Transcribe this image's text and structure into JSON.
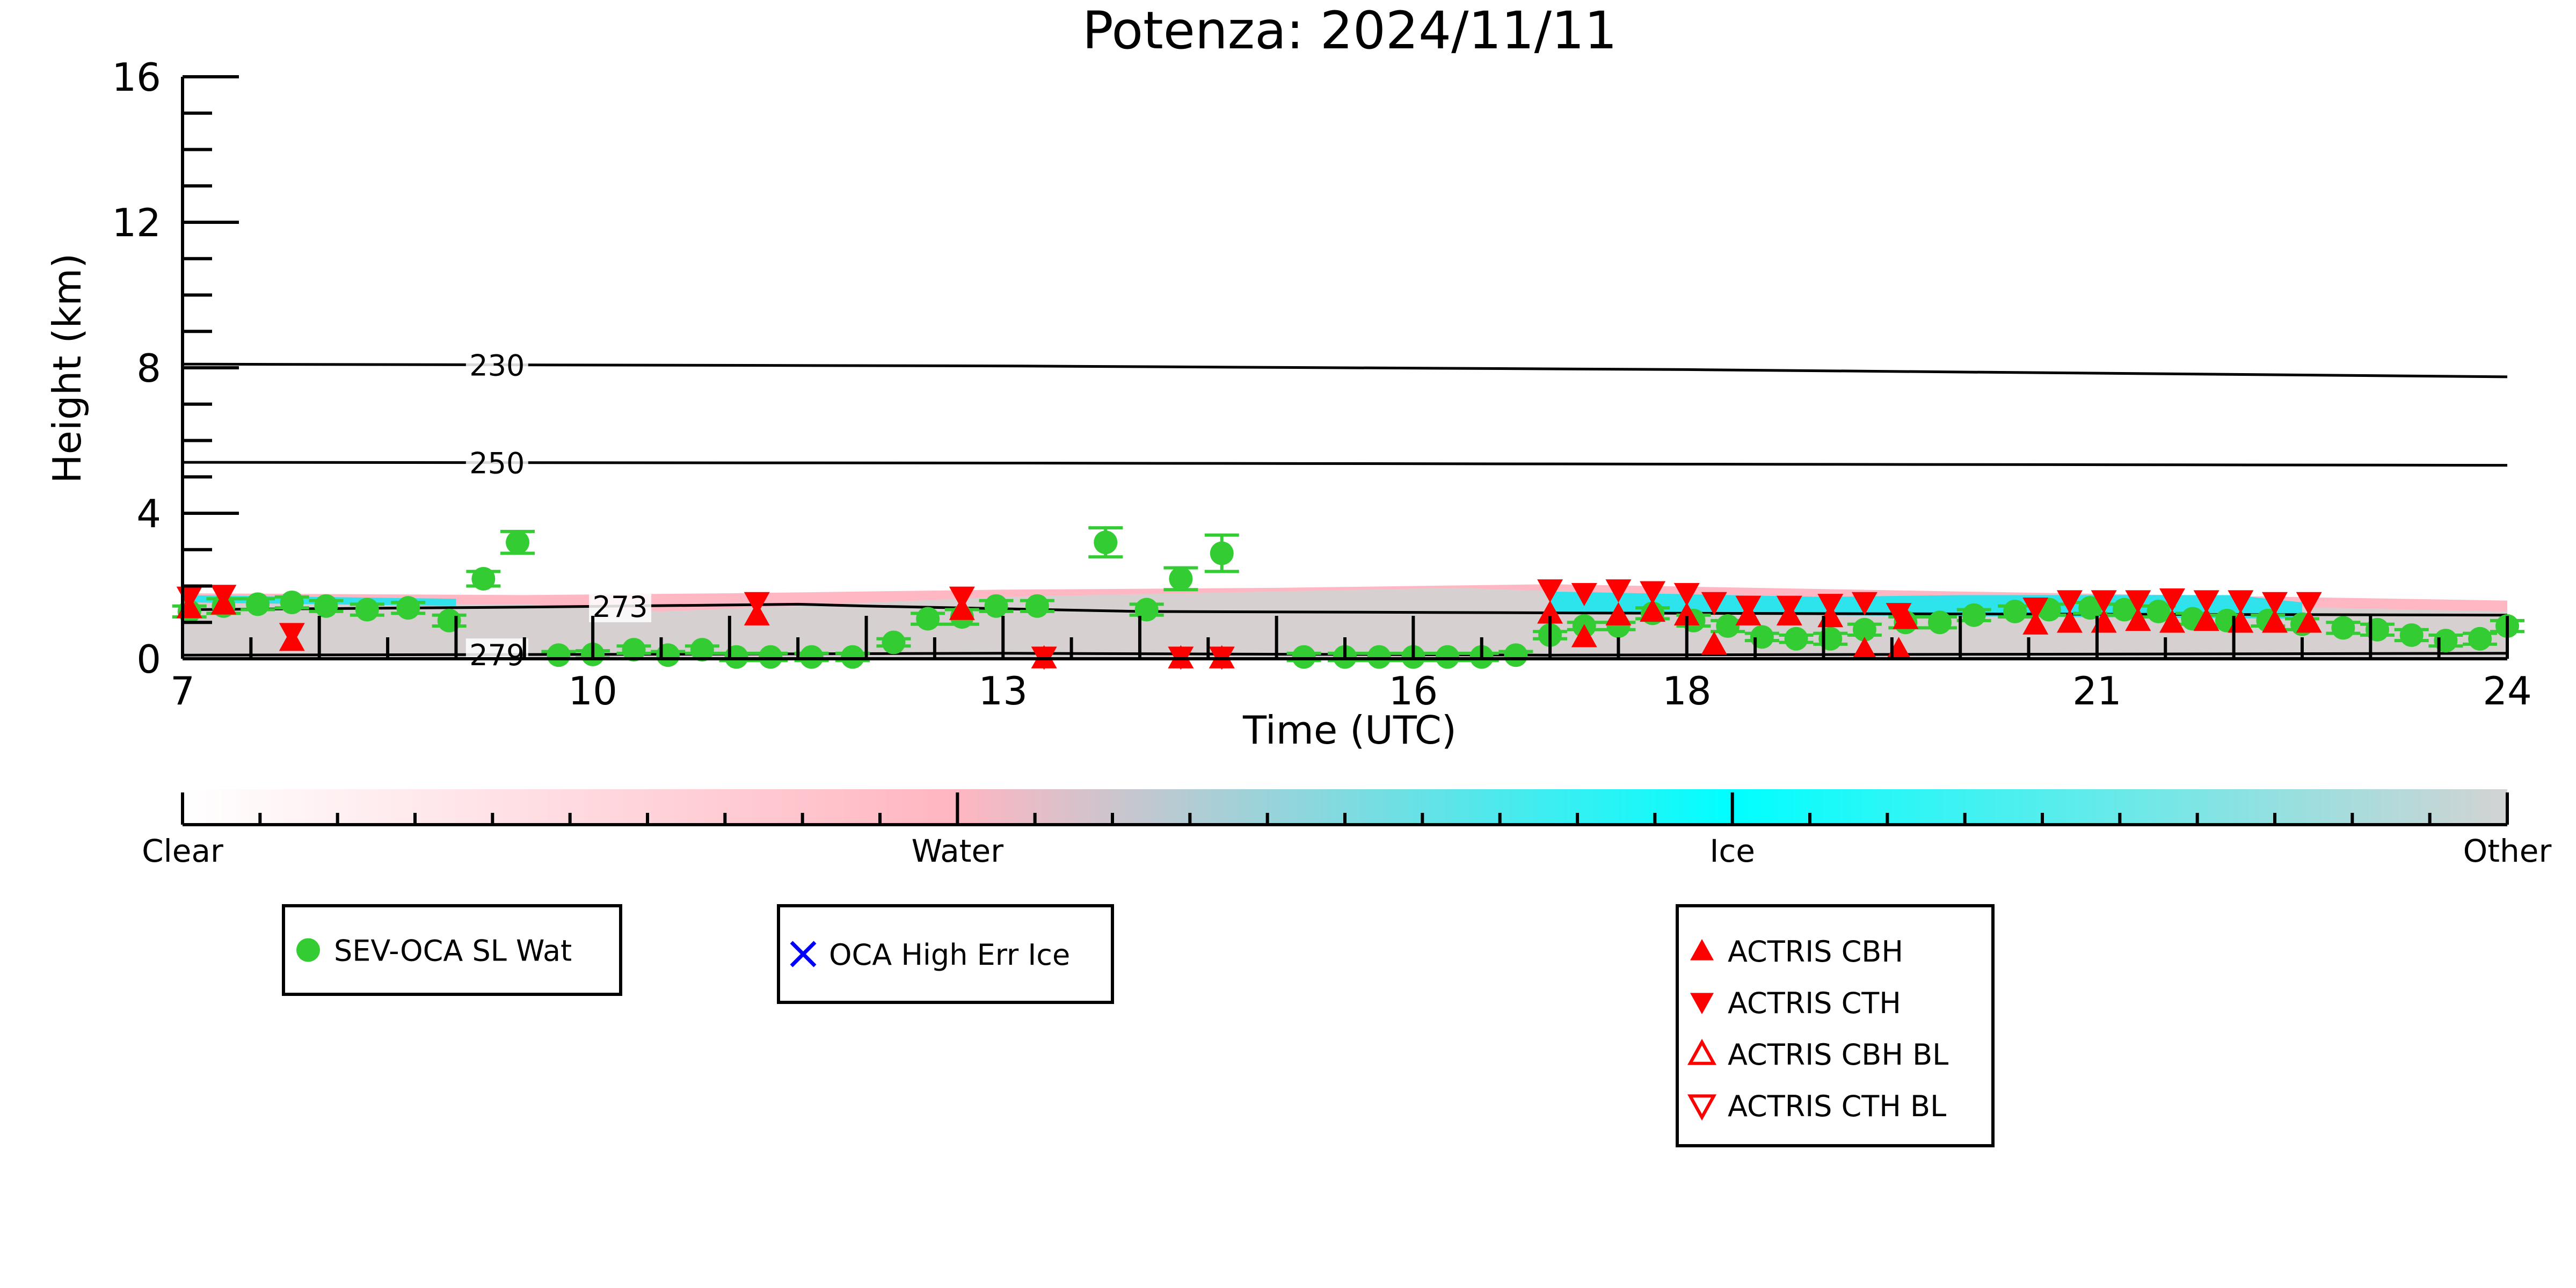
{
  "chart_data": {
    "type": "scatter",
    "title": "Potenza: 2024/11/11",
    "xlabel": "Time (UTC)",
    "ylabel": "Height (km)",
    "xlim": [
      7,
      24
    ],
    "ylim": [
      0,
      16
    ],
    "xticks": [
      7,
      10,
      13,
      16,
      18,
      21,
      24
    ],
    "xtick_labels": [
      "7",
      "10",
      "13",
      "16",
      "18",
      "21",
      "24"
    ],
    "yticks": [
      0,
      4,
      8,
      12,
      16
    ],
    "ytick_labels": [
      "0",
      "4",
      "8",
      "12",
      "16"
    ],
    "isotherms": [
      {
        "label": "230",
        "label_x": 9.3,
        "points": [
          [
            7,
            8.1
          ],
          [
            13,
            8.05
          ],
          [
            18,
            7.95
          ],
          [
            24,
            7.75
          ]
        ]
      },
      {
        "label": "250",
        "label_x": 9.3,
        "points": [
          [
            7,
            5.4
          ],
          [
            13,
            5.38
          ],
          [
            18,
            5.35
          ],
          [
            24,
            5.32
          ]
        ]
      },
      {
        "label": "273",
        "label_x": 10.2,
        "points": [
          [
            7,
            1.35
          ],
          [
            9.5,
            1.42
          ],
          [
            11.5,
            1.5
          ],
          [
            12,
            1.45
          ],
          [
            14,
            1.3
          ],
          [
            18,
            1.25
          ],
          [
            24,
            1.2
          ]
        ]
      },
      {
        "label": "279",
        "label_x": 9.3,
        "points": [
          [
            7,
            0.1
          ],
          [
            10,
            0.12
          ],
          [
            13,
            0.15
          ],
          [
            17,
            0.1
          ],
          [
            24,
            0.15
          ]
        ]
      }
    ],
    "cloud_mask_regions": [
      {
        "class": "Water",
        "color": "#ffb0bd",
        "points": [
          [
            7,
            1.8
          ],
          [
            9.5,
            1.75
          ],
          [
            11,
            1.8
          ],
          [
            13,
            1.9
          ],
          [
            15,
            1.95
          ],
          [
            17,
            2.05
          ],
          [
            20,
            1.85
          ],
          [
            24,
            1.6
          ],
          [
            24,
            0
          ],
          [
            7,
            0
          ]
        ]
      },
      {
        "class": "Other",
        "color": "#d3d3d3",
        "points": [
          [
            7,
            1.5
          ],
          [
            9.5,
            1.5
          ],
          [
            10.5,
            1.3
          ],
          [
            13,
            1.7
          ],
          [
            16.3,
            1.95
          ],
          [
            17.5,
            1.8
          ],
          [
            20,
            1.6
          ],
          [
            24,
            1.3
          ],
          [
            24,
            0
          ],
          [
            7,
            0
          ]
        ]
      },
      {
        "class": "Ice",
        "color": "#1be5f0",
        "points": [
          [
            17,
            1.85
          ],
          [
            19,
            1.7
          ],
          [
            20,
            1.75
          ],
          [
            22,
            1.75
          ],
          [
            22.5,
            1.55
          ],
          [
            22.5,
            1.1
          ],
          [
            17,
            1.25
          ]
        ]
      },
      {
        "class": "Ice",
        "color": "#1be5f0",
        "points": [
          [
            7,
            1.75
          ],
          [
            9,
            1.65
          ],
          [
            9,
            1.45
          ],
          [
            7,
            1.55
          ]
        ]
      }
    ],
    "series": [
      {
        "name": "SEV-OCA SL Wat",
        "marker": "circle",
        "color": "#33cc33",
        "points": [
          [
            7.05,
            1.3,
            0.15
          ],
          [
            7.3,
            1.45,
            0.2
          ],
          [
            7.55,
            1.5,
            0.15
          ],
          [
            7.8,
            1.55,
            0.15
          ],
          [
            8.05,
            1.45,
            0.15
          ],
          [
            8.35,
            1.35,
            0.15
          ],
          [
            8.65,
            1.4,
            0.15
          ],
          [
            8.95,
            1.05,
            0.15
          ],
          [
            9.2,
            2.2,
            0.2
          ],
          [
            9.45,
            3.2,
            0.3
          ],
          [
            9.75,
            0.1,
            0.1
          ],
          [
            10.0,
            0.12,
            0.1
          ],
          [
            10.3,
            0.25,
            0.1
          ],
          [
            10.55,
            0.1,
            0.1
          ],
          [
            10.8,
            0.25,
            0.1
          ],
          [
            11.05,
            0.05,
            0.1
          ],
          [
            11.3,
            0.05,
            0.1
          ],
          [
            11.6,
            0.05,
            0.1
          ],
          [
            11.9,
            0.05,
            0.1
          ],
          [
            12.2,
            0.45,
            0.1
          ],
          [
            12.45,
            1.1,
            0.15
          ],
          [
            12.7,
            1.15,
            0.2
          ],
          [
            12.95,
            1.45,
            0.15
          ],
          [
            13.25,
            1.45,
            0.15
          ],
          [
            13.75,
            3.2,
            0.4
          ],
          [
            14.05,
            1.35,
            0.15
          ],
          [
            14.3,
            2.2,
            0.3
          ],
          [
            14.6,
            2.9,
            0.5
          ],
          [
            15.2,
            0.05,
            0.1
          ],
          [
            15.5,
            0.05,
            0.1
          ],
          [
            15.75,
            0.05,
            0.1
          ],
          [
            16.0,
            0.05,
            0.1
          ],
          [
            16.25,
            0.05,
            0.1
          ],
          [
            16.5,
            0.05,
            0.1
          ],
          [
            16.75,
            0.1,
            0.1
          ],
          [
            17.0,
            0.65,
            0.1
          ],
          [
            17.25,
            0.9,
            0.1
          ],
          [
            17.5,
            0.9,
            0.1
          ],
          [
            17.75,
            1.25,
            0.15
          ],
          [
            18.05,
            1.05,
            0.15
          ],
          [
            18.3,
            0.9,
            0.15
          ],
          [
            18.55,
            0.6,
            0.1
          ],
          [
            18.8,
            0.55,
            0.1
          ],
          [
            19.05,
            0.55,
            0.15
          ],
          [
            19.3,
            0.8,
            0.15
          ],
          [
            19.6,
            1.0,
            0.15
          ],
          [
            19.85,
            1.0,
            0.15
          ],
          [
            20.1,
            1.2,
            0.15
          ],
          [
            20.4,
            1.3,
            0.15
          ],
          [
            20.65,
            1.35,
            0.15
          ],
          [
            20.95,
            1.4,
            0.15
          ],
          [
            21.2,
            1.35,
            0.15
          ],
          [
            21.45,
            1.3,
            0.15
          ],
          [
            21.7,
            1.1,
            0.15
          ],
          [
            21.95,
            1.05,
            0.15
          ],
          [
            22.25,
            1.05,
            0.15
          ],
          [
            22.5,
            0.95,
            0.15
          ],
          [
            22.8,
            0.85,
            0.15
          ],
          [
            23.05,
            0.8,
            0.15
          ],
          [
            23.3,
            0.65,
            0.15
          ],
          [
            23.55,
            0.5,
            0.15
          ],
          [
            23.8,
            0.55,
            0.15
          ],
          [
            24.0,
            0.9,
            0.15
          ]
        ]
      },
      {
        "name": "ACTRIS CBH",
        "marker": "triangle-up",
        "color": "#ff0000",
        "points": [
          [
            7.05,
            1.4
          ],
          [
            7.3,
            1.5
          ],
          [
            7.8,
            0.5
          ],
          [
            11.2,
            1.2
          ],
          [
            12.7,
            1.35
          ],
          [
            13.3,
            0.02
          ],
          [
            14.3,
            0.02
          ],
          [
            14.6,
            0.02
          ],
          [
            17.0,
            1.25
          ],
          [
            17.25,
            0.6
          ],
          [
            17.5,
            1.2
          ],
          [
            17.75,
            1.3
          ],
          [
            18.0,
            1.2
          ],
          [
            18.2,
            0.4
          ],
          [
            18.45,
            1.2
          ],
          [
            18.75,
            1.2
          ],
          [
            19.05,
            1.15
          ],
          [
            19.3,
            0.25
          ],
          [
            19.55,
            0.25
          ],
          [
            19.6,
            1.1
          ],
          [
            20.55,
            0.95
          ],
          [
            20.8,
            1.0
          ],
          [
            21.05,
            1.0
          ],
          [
            21.3,
            1.05
          ],
          [
            21.55,
            1.0
          ],
          [
            21.8,
            1.05
          ],
          [
            22.05,
            1.0
          ],
          [
            22.3,
            1.0
          ],
          [
            22.55,
            1.0
          ]
        ]
      },
      {
        "name": "ACTRIS CTH",
        "marker": "triangle-down",
        "color": "#ff0000",
        "points": [
          [
            7.05,
            1.7
          ],
          [
            7.3,
            1.75
          ],
          [
            7.8,
            0.7
          ],
          [
            11.2,
            1.55
          ],
          [
            12.7,
            1.7
          ],
          [
            13.3,
            0.05
          ],
          [
            14.3,
            0.05
          ],
          [
            14.6,
            0.05
          ],
          [
            17.0,
            1.9
          ],
          [
            17.25,
            1.8
          ],
          [
            17.5,
            1.9
          ],
          [
            17.75,
            1.85
          ],
          [
            18.0,
            1.8
          ],
          [
            18.2,
            1.55
          ],
          [
            18.45,
            1.45
          ],
          [
            18.75,
            1.45
          ],
          [
            19.05,
            1.5
          ],
          [
            19.3,
            1.55
          ],
          [
            19.55,
            1.25
          ],
          [
            20.55,
            1.4
          ],
          [
            20.8,
            1.6
          ],
          [
            21.05,
            1.6
          ],
          [
            21.3,
            1.6
          ],
          [
            21.55,
            1.65
          ],
          [
            21.8,
            1.6
          ],
          [
            22.05,
            1.6
          ],
          [
            22.3,
            1.55
          ],
          [
            22.55,
            1.55
          ]
        ]
      }
    ],
    "colorbar": {
      "labels": [
        "Clear",
        "Water",
        "Ice",
        "Other"
      ],
      "colors": [
        "#ffffff",
        "#ffb6c1",
        "#00ffff",
        "#d3d3d3"
      ]
    },
    "legends": [
      {
        "entries": [
          {
            "label": "SEV-OCA SL Wat",
            "marker": "circle",
            "color": "#33cc33"
          }
        ]
      },
      {
        "entries": [
          {
            "label": "OCA High Err Ice",
            "marker": "x",
            "color": "#0000ff"
          }
        ]
      },
      {
        "entries": [
          {
            "label": "ACTRIS CBH",
            "marker": "triangle-up",
            "color": "#ff0000"
          },
          {
            "label": "ACTRIS CTH",
            "marker": "triangle-down",
            "color": "#ff0000"
          },
          {
            "label": "ACTRIS CBH BL",
            "marker": "triangle-up-open",
            "color": "#ff0000"
          },
          {
            "label": "ACTRIS CTH BL",
            "marker": "triangle-down-open",
            "color": "#ff0000"
          }
        ]
      }
    ]
  }
}
